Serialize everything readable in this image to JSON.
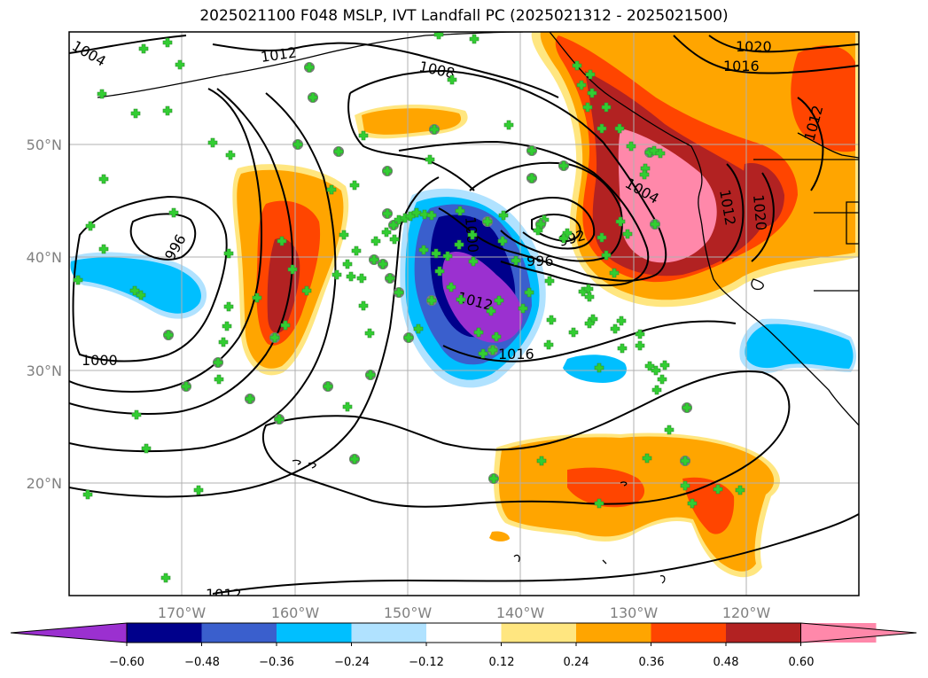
{
  "title": "2025021100 F048 MSLP, IVT Landfall PC (2025021312 - 2025021500)",
  "map": {
    "lat_labels": [
      "50°N",
      "40°N",
      "30°N",
      "20°N"
    ],
    "lon_labels": [
      "170°W",
      "160°W",
      "150°W",
      "140°W",
      "130°W",
      "120°W"
    ],
    "isobars": [
      "1004",
      "1012",
      "1008",
      "1020",
      "1016",
      "1012",
      "1004",
      "1012",
      "1020",
      "996",
      "996",
      "992",
      "1000",
      "1000",
      "1012",
      "1016",
      "1012"
    ],
    "colors": {
      "land_lines": "#000000",
      "grid": "#b0b0b0",
      "marker": "#32cd32",
      "marker_circle": "#808080"
    }
  },
  "colorbar": {
    "ticks": [
      "−0.60",
      "−0.48",
      "−0.36",
      "−0.24",
      "−0.12",
      "0.12",
      "0.24",
      "0.36",
      "0.48",
      "0.60"
    ],
    "colors": [
      "#9b30d0",
      "#00008b",
      "#3a5fcd",
      "#00bfff",
      "#b0e2ff",
      "#ffffff",
      "#ffe680",
      "#ffa500",
      "#ff4500",
      "#b22222",
      "#ff88aa",
      "#ff88aa"
    ]
  }
}
